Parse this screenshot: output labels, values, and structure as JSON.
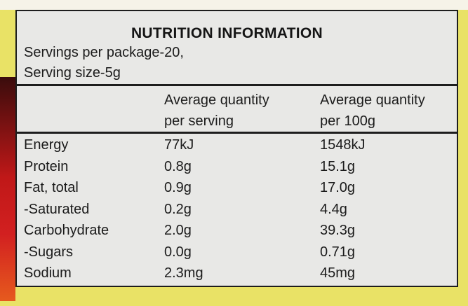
{
  "panel": {
    "title": "NUTRITION INFORMATION",
    "servings_per_package": "Servings per package-20,",
    "serving_size": "Serving size-5g",
    "col_per_serving": [
      "Average quantity",
      "per serving"
    ],
    "col_per_100g": [
      "Average quantity",
      "per 100g"
    ],
    "rows": [
      {
        "name": "Energy",
        "per_serving": "77kJ",
        "per_100g": "1548kJ"
      },
      {
        "name": "Protein",
        "per_serving": "0.8g",
        "per_100g": "15.1g"
      },
      {
        "name": "Fat, total",
        "per_serving": "0.9g",
        "per_100g": "17.0g"
      },
      {
        "name": "-Saturated",
        "per_serving": "0.2g",
        "per_100g": "4.4g"
      },
      {
        "name": "Carbohydrate",
        "per_serving": "2.0g",
        "per_100g": "39.3g"
      },
      {
        "name": "-Sugars",
        "per_serving": "0.0g",
        "per_100g": "0.71g"
      },
      {
        "name": "Sodium",
        "per_serving": "2.3mg",
        "per_100g": "45mg"
      }
    ]
  }
}
